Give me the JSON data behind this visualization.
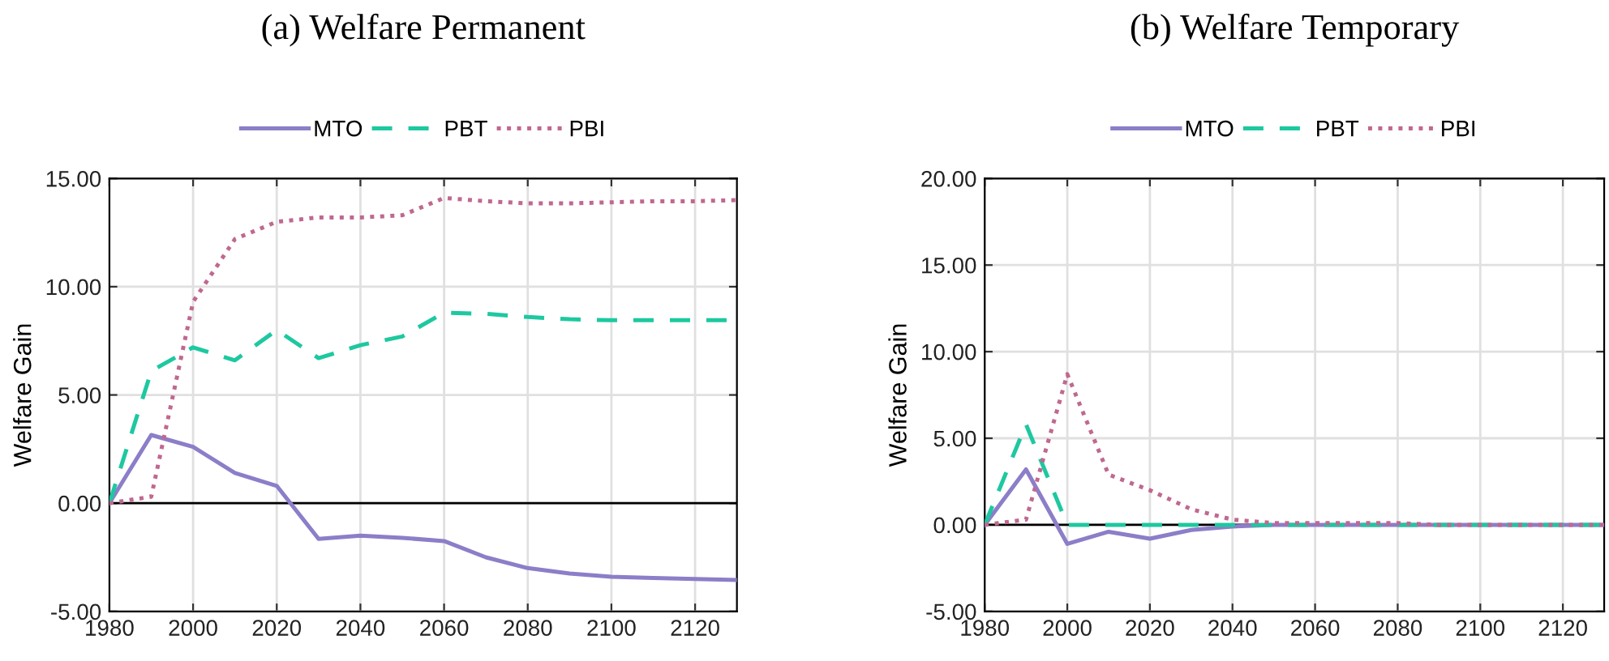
{
  "chart_data": [
    {
      "type": "line",
      "title": "(a) Welfare Permanent",
      "ylabel": "Welfare Gain",
      "x": [
        1980,
        1990,
        2000,
        2010,
        2020,
        2030,
        2040,
        2050,
        2060,
        2070,
        2080,
        2090,
        2100,
        2110,
        2120,
        2130
      ],
      "series": [
        {
          "name": "MTO",
          "color": "#8c7ec8",
          "line_style": "solid",
          "values": [
            0,
            3.15,
            2.6,
            1.4,
            0.8,
            -1.65,
            -1.5,
            -1.6,
            -1.75,
            -2.5,
            -3.0,
            -3.25,
            -3.4,
            -3.45,
            -3.5,
            -3.55
          ]
        },
        {
          "name": "PBT",
          "color": "#1ec8a0",
          "line_style": "dashed",
          "values": [
            0,
            6.1,
            7.2,
            6.6,
            8.0,
            6.7,
            7.3,
            7.7,
            8.8,
            8.75,
            8.6,
            8.5,
            8.45,
            8.45,
            8.45,
            8.45
          ]
        },
        {
          "name": "PBI",
          "color": "#c06890",
          "line_style": "dotted",
          "values": [
            0,
            0.3,
            9.3,
            12.2,
            13.0,
            13.2,
            13.2,
            13.3,
            14.1,
            13.95,
            13.85,
            13.85,
            13.9,
            13.95,
            13.95,
            14.0
          ]
        }
      ],
      "xlim": [
        1980,
        2130
      ],
      "xticks": [
        1980,
        2000,
        2020,
        2040,
        2060,
        2080,
        2100,
        2120
      ],
      "ylim": [
        -5,
        15
      ],
      "yticks": [
        {
          "value": -5,
          "label": "-5.00"
        },
        {
          "value": 0,
          "label": "0.00"
        },
        {
          "value": 5,
          "label": "5.00"
        },
        {
          "value": 10,
          "label": "10.00"
        },
        {
          "value": 15,
          "label": "15.00"
        }
      ],
      "ref_lines": [
        {
          "axis": "y",
          "value": 0,
          "color": "#000000"
        }
      ],
      "grid": true,
      "legend": "top",
      "marker": "none"
    },
    {
      "type": "line",
      "title": "(b) Welfare Temporary",
      "ylabel": "Welfare Gain",
      "x": [
        1980,
        1990,
        2000,
        2010,
        2020,
        2030,
        2040,
        2050,
        2060,
        2070,
        2080,
        2090,
        2100,
        2110,
        2120,
        2130
      ],
      "series": [
        {
          "name": "MTO",
          "color": "#8c7ec8",
          "line_style": "solid",
          "values": [
            0,
            3.2,
            -1.1,
            -0.4,
            -0.8,
            -0.3,
            -0.1,
            0,
            0,
            0,
            0,
            0,
            0,
            0,
            0,
            0
          ]
        },
        {
          "name": "PBT",
          "color": "#1ec8a0",
          "line_style": "dashed",
          "values": [
            0,
            5.8,
            0,
            0,
            0,
            0,
            0,
            0,
            0,
            0,
            0,
            0,
            0,
            0,
            0,
            0
          ]
        },
        {
          "name": "PBI",
          "color": "#c06890",
          "line_style": "dotted",
          "values": [
            0,
            0.3,
            8.7,
            2.9,
            2.0,
            0.9,
            0.3,
            0.1,
            0.1,
            0.1,
            0.1,
            0,
            0,
            0,
            0,
            0
          ]
        }
      ],
      "xlim": [
        1980,
        2130
      ],
      "xticks": [
        1980,
        2000,
        2020,
        2040,
        2060,
        2080,
        2100,
        2120
      ],
      "ylim": [
        -5,
        20
      ],
      "yticks": [
        {
          "value": -5,
          "label": "-5.00"
        },
        {
          "value": 0,
          "label": "0.00"
        },
        {
          "value": 5,
          "label": "5.00"
        },
        {
          "value": 10,
          "label": "10.00"
        },
        {
          "value": 15,
          "label": "15.00"
        },
        {
          "value": 20,
          "label": "20.00"
        }
      ],
      "ref_lines": [
        {
          "axis": "y",
          "value": 0,
          "color": "#000000"
        }
      ],
      "grid": true,
      "legend": "top",
      "marker": "none"
    }
  ]
}
